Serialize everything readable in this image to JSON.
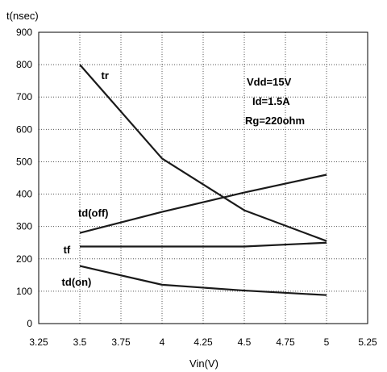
{
  "chart_data": {
    "type": "line",
    "title": "",
    "xlabel": "Vin(V)",
    "ylabel": "t(nsec)",
    "xlim": [
      3.25,
      5.25
    ],
    "ylim": [
      0,
      900
    ],
    "x_ticks": [
      3.25,
      3.5,
      3.75,
      4,
      4.25,
      4.5,
      4.75,
      5,
      5.25
    ],
    "x_tick_labels": [
      "3.25",
      "3.5",
      "3.75",
      "4",
      "4.25",
      "4.5",
      "4.75",
      "5",
      "5.25"
    ],
    "y_ticks": [
      0,
      100,
      200,
      300,
      400,
      500,
      600,
      700,
      800,
      900
    ],
    "y_tick_labels": [
      "0",
      "100",
      "200",
      "300",
      "400",
      "500",
      "600",
      "700",
      "800",
      "900"
    ],
    "grid": true,
    "series": [
      {
        "name": "tr",
        "x": [
          3.5,
          4,
          4.5,
          5
        ],
        "values": [
          800,
          510,
          350,
          255
        ]
      },
      {
        "name": "td(off)",
        "x": [
          3.5,
          4,
          4.5,
          5
        ],
        "values": [
          280,
          345,
          405,
          460
        ]
      },
      {
        "name": "tf",
        "x": [
          3.5,
          4,
          4.5,
          5
        ],
        "values": [
          238,
          238,
          238,
          250
        ]
      },
      {
        "name": "td(on)",
        "x": [
          3.5,
          4,
          4.5,
          5
        ],
        "values": [
          178,
          120,
          102,
          88
        ]
      }
    ],
    "annotations": [
      "Vdd=15V",
      "Id=1.5A",
      "Rg=220ohm"
    ]
  }
}
